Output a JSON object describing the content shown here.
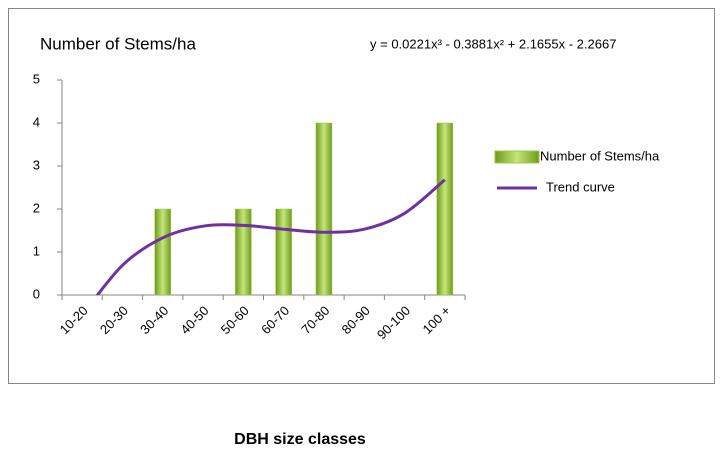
{
  "chart_data": {
    "type": "bar",
    "title": "Number of Stems/ha",
    "equation": "y = 0.0221x³ - 0.3881x² + 2.1655x - 2.2667",
    "xlabel": "DBH size classes",
    "categories": [
      "10-20",
      "20-30",
      "30-40",
      "40-50",
      "50-60",
      "60-70",
      "70-80",
      "80-90",
      "90-100",
      "100 +"
    ],
    "series": [
      {
        "name": "Number of Stems/ha",
        "color": "#9bcb3b",
        "values": [
          0,
          0,
          2,
          0,
          2,
          2,
          4,
          0,
          0,
          4
        ]
      },
      {
        "name": "Trend curve",
        "type": "line",
        "color": "#7030a0",
        "values": [
          -0.47,
          0.69,
          1.33,
          1.6,
          1.62,
          1.53,
          1.46,
          1.53,
          1.9,
          2.68
        ]
      }
    ],
    "ylim": [
      0,
      5
    ],
    "yticks": [
      0,
      1,
      2,
      3,
      4,
      5
    ],
    "grid": false
  }
}
